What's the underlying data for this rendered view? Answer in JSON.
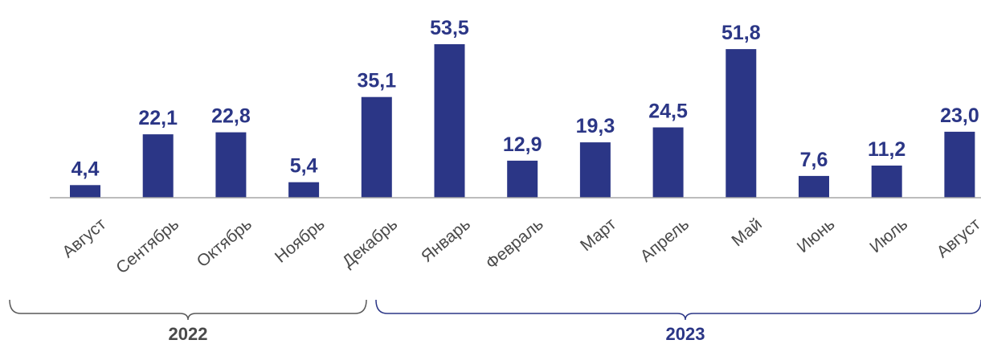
{
  "chart_data": {
    "type": "bar",
    "categories": [
      "Август",
      "Сентябрь",
      "Октябрь",
      "Ноябрь",
      "Декабрь",
      "Январь",
      "Февраль",
      "Март",
      "Апрель",
      "Май",
      "Июнь",
      "Июль",
      "Август"
    ],
    "values": [
      4.4,
      22.1,
      22.8,
      5.4,
      35.1,
      53.5,
      12.9,
      19.3,
      24.5,
      51.8,
      7.6,
      11.2,
      23.0
    ],
    "value_labels": [
      "4,4",
      "22,1",
      "22,8",
      "5,4",
      "35,1",
      "53,5",
      "12,9",
      "19,3",
      "24,5",
      "51,8",
      "7,6",
      "11,2",
      "23,0"
    ],
    "ylim": [
      0,
      60
    ],
    "grid": false,
    "year_groups": [
      {
        "label": "2022",
        "from_index": 0,
        "to_index": 4
      },
      {
        "label": "2023",
        "from_index": 5,
        "to_index": 12
      }
    ]
  },
  "colors": {
    "bar": "#2b3686",
    "value_label": "#2b3686",
    "category_label": "#4a4a4a",
    "axis": "#a6a6a6",
    "bracket_2022": "#595959",
    "bracket_2023": "#2b3686",
    "year_2022": "#4a4a4a",
    "year_2023": "#2b3686"
  }
}
